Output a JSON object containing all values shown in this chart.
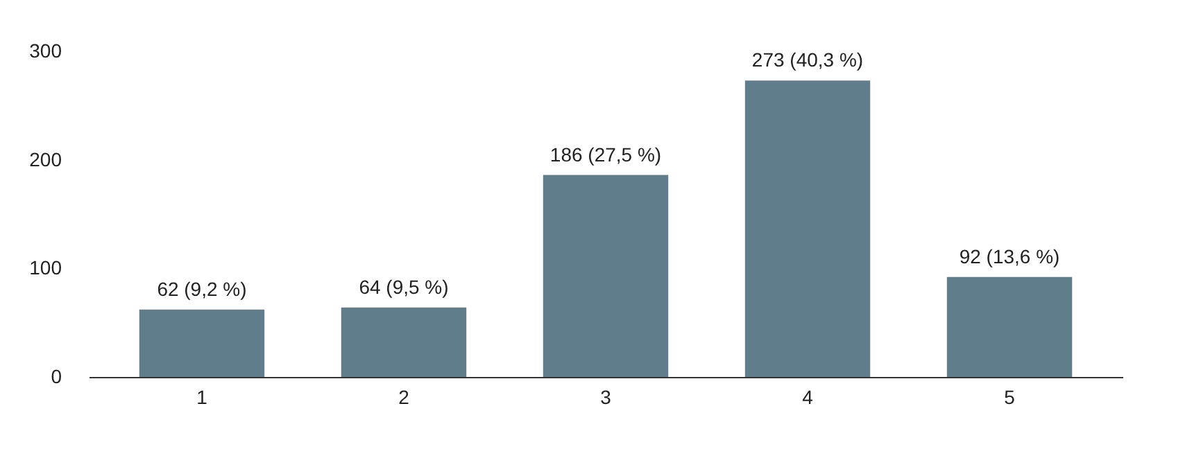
{
  "chart_data": {
    "type": "bar",
    "categories": [
      "1",
      "2",
      "3",
      "4",
      "5"
    ],
    "values": [
      62,
      64,
      186,
      273,
      92
    ],
    "value_labels": [
      "62 (9,2 %)",
      "64 (9,5 %)",
      "186 (27,5 %)",
      "273 (40,3 %)",
      "92 (13,6 %)"
    ],
    "color": "#607d8b",
    "ylim": [
      0,
      300
    ],
    "yticks": [
      0,
      100,
      200,
      300
    ],
    "grid": false
  }
}
